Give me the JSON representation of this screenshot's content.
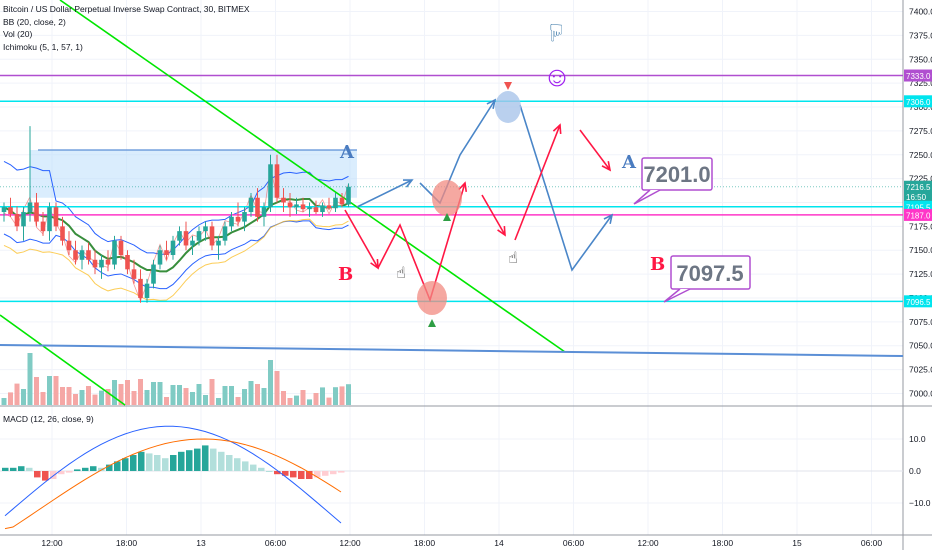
{
  "legend": {
    "title": "Bitcoin / US Dollar Perpetual Inverse Swap Contract, 30, BITMEX",
    "bb": "BB (20, close, 2)",
    "vol": "Vol (20)",
    "ichimoku": "Ichimoku (5, 1, 57, 1)",
    "macd": "MACD (12, 26, close, 9)"
  },
  "colors": {
    "up": "#26a69a",
    "down": "#ef5350",
    "bb_band": "#2962ff",
    "bb_fill": "#bbdefb",
    "ma_green": "#388e3c",
    "tan": "#fbc02d",
    "trend_green": "#00e600",
    "blue_line": "#5b8fd6",
    "red_arrow": "#ff1744",
    "blue_arrow": "#4a86c8",
    "magenta": "#b04fd0",
    "cyan": "#00e5ee",
    "pink": "#ff36c8"
  },
  "chart_data": {
    "type": "candlestick",
    "price_axis": {
      "range": [
        6990,
        7410
      ],
      "ticks": [
        7400,
        7375,
        7350,
        7325,
        7300,
        7275,
        7250,
        7225,
        7200,
        7175,
        7150,
        7125,
        7100,
        7075,
        7050,
        7025,
        7000
      ],
      "tick_labels": [
        "7400.0",
        "7375.0",
        "7350.0",
        "7325.0",
        "7300.0",
        "7275.0",
        "7250.0",
        "7225.0",
        "7200.0",
        "7175.0",
        "7150.0",
        "7125.0",
        "7100.0",
        "7075.0",
        "7050.0",
        "7025.0",
        "7000.0"
      ]
    },
    "macd_axis": {
      "range": [
        -20,
        20
      ],
      "ticks": [
        10,
        0,
        -10
      ],
      "tick_labels": [
        "10.0",
        "0.0",
        "−10.0"
      ]
    },
    "time_axis": {
      "labels": [
        "12:00",
        "18:00",
        "13",
        "06:00",
        "12:00",
        "18:00",
        "14",
        "06:00",
        "12:00",
        "18:00",
        "15",
        "06:00"
      ]
    },
    "price_badges": [
      {
        "label": "7333.0",
        "value": 7333.0,
        "color": "#b04fd0"
      },
      {
        "label": "7306.0",
        "value": 7306.0,
        "color": "#00e5ee"
      },
      {
        "label": "7216.5",
        "value": 7216.5,
        "color": "#26a69a"
      },
      {
        "label": "16:50",
        "value": 7206.5,
        "color": "#26a69a"
      },
      {
        "label": "7195.5",
        "value": 7195.5,
        "color": "#00e5ee"
      },
      {
        "label": "7187.0",
        "value": 7187.0,
        "color": "#ff36c8"
      },
      {
        "label": "7096.5",
        "value": 7096.5,
        "color": "#00e5ee"
      }
    ],
    "horizontal_lines": [
      {
        "value": 7333.0,
        "color": "#b04fd0"
      },
      {
        "value": 7306.0,
        "color": "#00e5ee"
      },
      {
        "value": 7195.5,
        "color": "#00e5ee"
      },
      {
        "value": 7187.0,
        "color": "#ff36c8"
      },
      {
        "value": 7096.5,
        "color": "#00e5ee"
      }
    ],
    "candles": [
      [
        7190,
        7200,
        7180,
        7195
      ],
      [
        7195,
        7205,
        7185,
        7188
      ],
      [
        7188,
        7196,
        7170,
        7175
      ],
      [
        7175,
        7195,
        7160,
        7190
      ],
      [
        7190,
        7280,
        7180,
        7200
      ],
      [
        7200,
        7210,
        7175,
        7180
      ],
      [
        7180,
        7190,
        7165,
        7170
      ],
      [
        7170,
        7200,
        7160,
        7195
      ],
      [
        7195,
        7200,
        7170,
        7175
      ],
      [
        7175,
        7185,
        7155,
        7160
      ],
      [
        7160,
        7170,
        7145,
        7150
      ],
      [
        7150,
        7160,
        7135,
        7140
      ],
      [
        7140,
        7155,
        7130,
        7150
      ],
      [
        7150,
        7158,
        7135,
        7140
      ],
      [
        7140,
        7150,
        7125,
        7132
      ],
      [
        7132,
        7145,
        7120,
        7140
      ],
      [
        7140,
        7150,
        7128,
        7135
      ],
      [
        7135,
        7165,
        7130,
        7160
      ],
      [
        7160,
        7165,
        7140,
        7145
      ],
      [
        7145,
        7150,
        7125,
        7130
      ],
      [
        7130,
        7140,
        7115,
        7120
      ],
      [
        7120,
        7130,
        7095,
        7100
      ],
      [
        7100,
        7120,
        7095,
        7115
      ],
      [
        7115,
        7140,
        7110,
        7135
      ],
      [
        7135,
        7155,
        7130,
        7150
      ],
      [
        7150,
        7160,
        7140,
        7145
      ],
      [
        7145,
        7165,
        7140,
        7160
      ],
      [
        7160,
        7175,
        7155,
        7170
      ],
      [
        7170,
        7180,
        7150,
        7155
      ],
      [
        7155,
        7165,
        7145,
        7160
      ],
      [
        7160,
        7175,
        7155,
        7170
      ],
      [
        7170,
        7180,
        7160,
        7175
      ],
      [
        7175,
        7180,
        7150,
        7155
      ],
      [
        7155,
        7165,
        7140,
        7160
      ],
      [
        7160,
        7180,
        7155,
        7175
      ],
      [
        7175,
        7190,
        7170,
        7185
      ],
      [
        7185,
        7200,
        7175,
        7180
      ],
      [
        7180,
        7195,
        7170,
        7190
      ],
      [
        7190,
        7210,
        7185,
        7205
      ],
      [
        7205,
        7215,
        7180,
        7185
      ],
      [
        7185,
        7200,
        7175,
        7195
      ],
      [
        7195,
        7250,
        7190,
        7240
      ],
      [
        7240,
        7250,
        7200,
        7205
      ],
      [
        7205,
        7215,
        7190,
        7200
      ],
      [
        7200,
        7210,
        7185,
        7195
      ],
      [
        7195,
        7205,
        7188,
        7198
      ],
      [
        7198,
        7205,
        7190,
        7193
      ],
      [
        7193,
        7200,
        7185,
        7195
      ],
      [
        7195,
        7202,
        7188,
        7190
      ],
      [
        7190,
        7200,
        7185,
        7197
      ],
      [
        7197,
        7205,
        7192,
        7194
      ],
      [
        7194,
        7210,
        7190,
        7205
      ],
      [
        7205,
        7210,
        7195,
        7198
      ],
      [
        7198,
        7220,
        7195,
        7216.5
      ]
    ],
    "macd_histogram": [
      1,
      1,
      1.5,
      1,
      -2,
      -3,
      -2.5,
      -1,
      -0.5,
      0.5,
      1,
      1.5,
      1,
      2,
      3,
      4,
      5,
      6,
      5.5,
      5,
      4,
      5,
      6,
      6.5,
      7,
      8,
      7,
      6,
      5,
      4,
      3,
      2,
      1,
      0,
      -1,
      -1.5,
      -2,
      -2.5,
      -2.5,
      -2,
      -1.5,
      -1,
      -0.5
    ]
  },
  "annotations": {
    "label_a1": "A",
    "label_a2": "A",
    "label_b1": "B",
    "label_b2": "B",
    "box_upper": "7201.0",
    "box_lower": "7097.5",
    "smiley": "☺",
    "hand_up": "☝",
    "hand_pointer": "☝",
    "hand_pointer2": "☝"
  }
}
